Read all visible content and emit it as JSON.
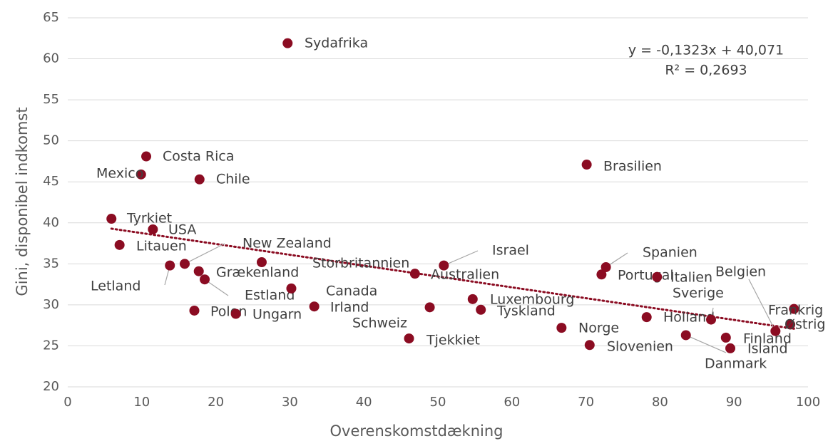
{
  "chart_data": {
    "type": "scatter",
    "xlabel": "Overenskomstdækning",
    "ylabel": "Gini, disponibel indkomst",
    "xlim": [
      0,
      100
    ],
    "xticks": [
      0,
      10,
      20,
      30,
      40,
      50,
      60,
      70,
      80,
      90,
      100
    ],
    "ylim": [
      20,
      65
    ],
    "yticks": [
      20,
      25,
      30,
      35,
      40,
      45,
      50,
      55,
      60,
      65
    ],
    "grid": true,
    "color": "#8b0c22",
    "labels": [
      "Sydafrika",
      "Costa Rica",
      "Mexico",
      "Chile",
      "Brasilien",
      "Tyrkiet",
      "USA",
      "Litauen",
      "Letland",
      "New Zealand",
      "Grækenland",
      "Estland",
      "Storbritannien",
      "Polen",
      "Ungarn",
      "Canada",
      "Irland",
      "Australien",
      "Israel",
      "Schweiz",
      "Tjekkiet",
      "Luxembourg",
      "Tyskland",
      "Norge",
      "Slovenien",
      "Spanien",
      "Portugal",
      "Italien",
      "Holland",
      "Sverige",
      "Danmark",
      "Finland",
      "Island",
      "Belgien",
      "Frankrig",
      "Østrig"
    ],
    "x": [
      29.7,
      10.6,
      9.9,
      17.8,
      70.1,
      5.9,
      11.5,
      7.0,
      13.8,
      15.8,
      17.7,
      18.5,
      26.2,
      17.1,
      22.7,
      30.2,
      33.3,
      46.9,
      50.8,
      48.9,
      46.1,
      54.7,
      55.8,
      66.7,
      70.5,
      72.7,
      72.1,
      79.6,
      78.2,
      86.9,
      83.5,
      88.9,
      89.5,
      95.6,
      98.1,
      97.6
    ],
    "values": [
      61.9,
      48.1,
      45.9,
      45.3,
      47.1,
      40.5,
      39.2,
      37.3,
      34.8,
      35.0,
      34.1,
      33.1,
      35.2,
      29.3,
      28.9,
      32.0,
      29.8,
      33.8,
      34.8,
      29.7,
      25.9,
      30.7,
      29.4,
      27.2,
      25.1,
      34.6,
      33.7,
      33.4,
      28.5,
      28.2,
      26.3,
      26.0,
      24.7,
      26.8,
      29.5,
      27.6
    ],
    "trendline": {
      "slope": -0.1323,
      "intercept": 40.071,
      "equation": "y = -0,1323x + 40,071",
      "r2": "R² = 0,2693"
    }
  }
}
